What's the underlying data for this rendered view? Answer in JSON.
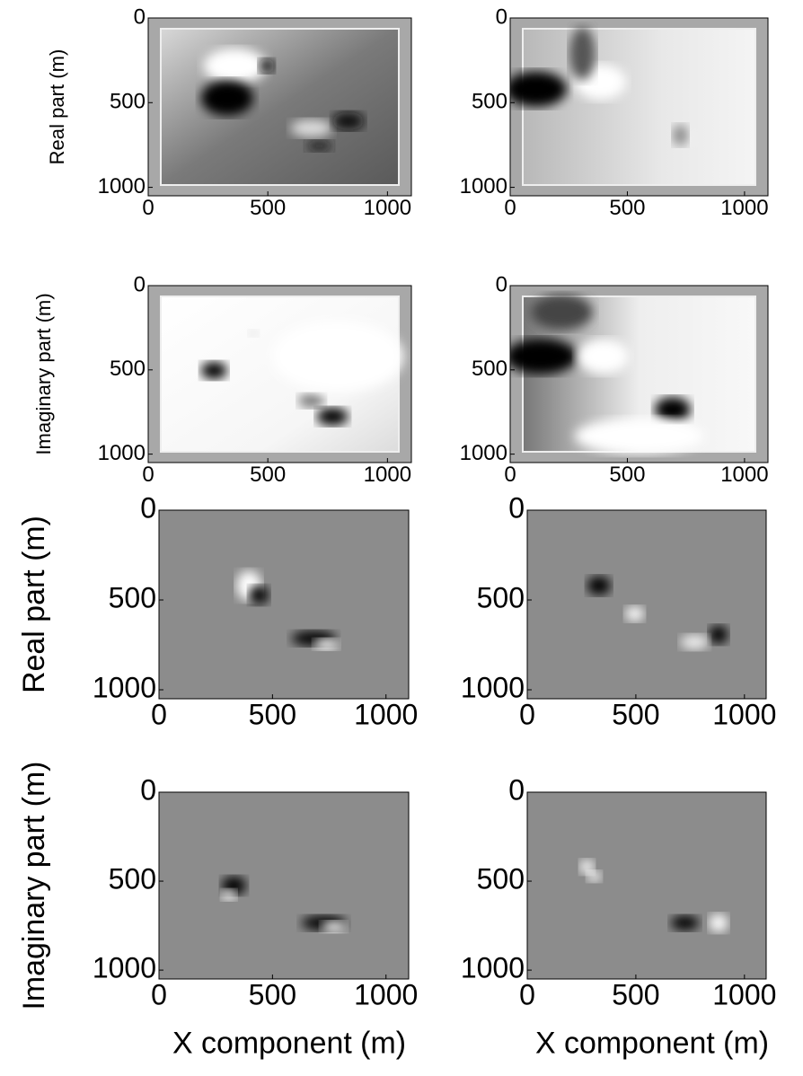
{
  "chart_data": [
    {
      "type": "image",
      "ylabel": "Real part (m)",
      "xlim": [
        0,
        1100
      ],
      "ylim": [
        0,
        1050
      ],
      "y_reversed": true,
      "xticks": [
        0,
        500,
        1000
      ],
      "yticks": [
        0,
        500,
        1000
      ]
    },
    {
      "type": "image",
      "xlim": [
        0,
        1100
      ],
      "ylim": [
        0,
        1050
      ],
      "y_reversed": true,
      "xticks": [
        0,
        500,
        1000
      ],
      "yticks": [
        0,
        500,
        1000
      ]
    },
    {
      "type": "image",
      "ylabel": "Imaginary part (m)",
      "xlim": [
        0,
        1100
      ],
      "ylim": [
        0,
        1050
      ],
      "y_reversed": true,
      "xticks": [
        0,
        500,
        1000
      ],
      "yticks": [
        0,
        500,
        1000
      ]
    },
    {
      "type": "image",
      "xlim": [
        0,
        1100
      ],
      "ylim": [
        0,
        1050
      ],
      "y_reversed": true,
      "xticks": [
        0,
        500,
        1000
      ],
      "yticks": [
        0,
        500,
        1000
      ]
    },
    {
      "type": "image",
      "ylabel": "Real part (m)",
      "xlim": [
        0,
        1100
      ],
      "ylim": [
        0,
        1050
      ],
      "y_reversed": true,
      "xticks": [
        0,
        500,
        1000
      ],
      "yticks": [
        0,
        500,
        1000
      ]
    },
    {
      "type": "image",
      "xlim": [
        0,
        1100
      ],
      "ylim": [
        0,
        1050
      ],
      "y_reversed": true,
      "xticks": [
        0,
        500,
        1000
      ],
      "yticks": [
        0,
        500,
        1000
      ]
    },
    {
      "type": "image",
      "ylabel": "Imaginary part (m)",
      "xlabel": "X component (m)",
      "xlim": [
        0,
        1100
      ],
      "ylim": [
        0,
        1050
      ],
      "y_reversed": true,
      "xticks": [
        0,
        500,
        1000
      ],
      "yticks": [
        0,
        500,
        1000
      ]
    },
    {
      "type": "image",
      "xlabel": "X component (m)",
      "xlim": [
        0,
        1100
      ],
      "ylim": [
        0,
        1050
      ],
      "y_reversed": true,
      "xticks": [
        0,
        500,
        1000
      ],
      "yticks": [
        0,
        500,
        1000
      ]
    }
  ]
}
